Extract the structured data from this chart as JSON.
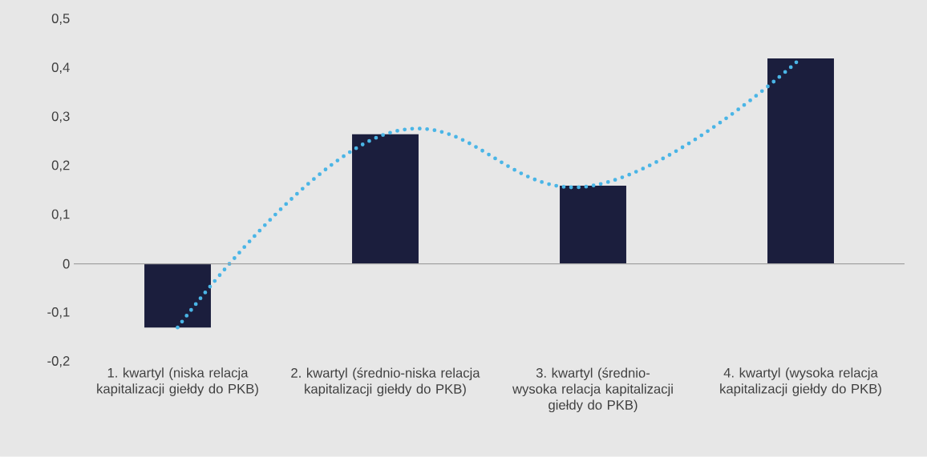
{
  "chart_data": {
    "type": "bar",
    "categories": [
      "1. kwartyl (niska relacja kapitalizacji giełdy do PKB)",
      "2. kwartyl (średnio-niska relacja kapitalizacji giełdy do PKB)",
      "3. kwartyl (średnio-wysoka relacja kapitalizacji giełdy do PKB)",
      "4. kwartyl (wysoka relacja kapitalizacji giełdy do PKB)"
    ],
    "series": [
      {
        "color": "#1b1e3d",
        "values": [
          -0.13,
          0.265,
          0.16,
          0.42
        ]
      },
      {
        "type": "line",
        "color": "#4ab5e6",
        "line_style": "dotted",
        "values": [
          -0.13,
          0.265,
          0.16,
          0.42
        ]
      }
    ],
    "ylim": [
      -0.2,
      0.5
    ],
    "yticks": [
      {
        "value": -0.2,
        "label": "-0,2"
      },
      {
        "value": -0.1,
        "label": "-0,1"
      },
      {
        "value": 0,
        "label": "0"
      },
      {
        "value": 0.1,
        "label": "0,1"
      },
      {
        "value": 0.2,
        "label": "0,2"
      },
      {
        "value": 0.3,
        "label": "0,3"
      },
      {
        "value": 0.4,
        "label": "0,4"
      },
      {
        "value": 0.5,
        "label": "0,5"
      }
    ],
    "ref_lines": [
      {
        "axis": "y",
        "value": 0,
        "color": "#a3a3a3"
      }
    ],
    "grid": false
  }
}
